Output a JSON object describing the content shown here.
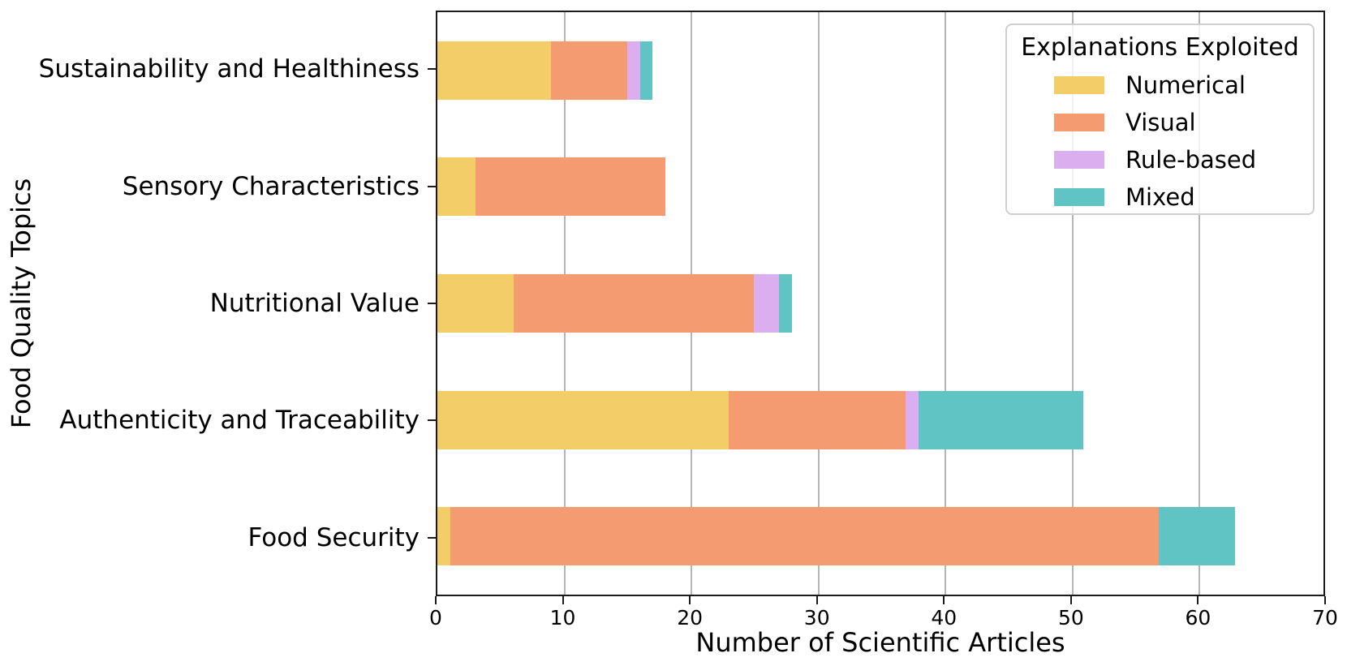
{
  "chart_data": {
    "type": "bar",
    "orientation": "horizontal",
    "stacked": true,
    "xlabel": "Number of Scientific Articles",
    "ylabel": "Food Quality Topics",
    "xlim": [
      0,
      70
    ],
    "xticks": [
      0,
      10,
      20,
      30,
      40,
      50,
      60,
      70
    ],
    "grid": "vertical-gridlines-on",
    "categories": [
      "Sustainability and Healthiness",
      "Sensory Characteristics",
      "Nutritional Value",
      "Authenticity and Traceability",
      "Food Security"
    ],
    "series": [
      {
        "name": "Numerical",
        "color": "#F3CD68",
        "values": [
          9,
          3,
          6,
          23,
          1
        ]
      },
      {
        "name": "Visual",
        "color": "#F59B72",
        "values": [
          6,
          15,
          19,
          14,
          56
        ]
      },
      {
        "name": "Rule-based",
        "color": "#DAAEEF",
        "values": [
          1,
          0,
          2,
          1,
          0
        ]
      },
      {
        "name": "Mixed",
        "color": "#60C3C4",
        "values": [
          1,
          0,
          1,
          13,
          6
        ]
      }
    ],
    "totals": [
      17,
      18,
      28,
      51,
      63
    ],
    "legend": {
      "title": "Explanations Exploited",
      "position": "upper-right"
    },
    "colors": {
      "gridline": "#b5b5b5",
      "spine": "#1a1a1a",
      "legend_border": "#cfcfcf"
    }
  }
}
